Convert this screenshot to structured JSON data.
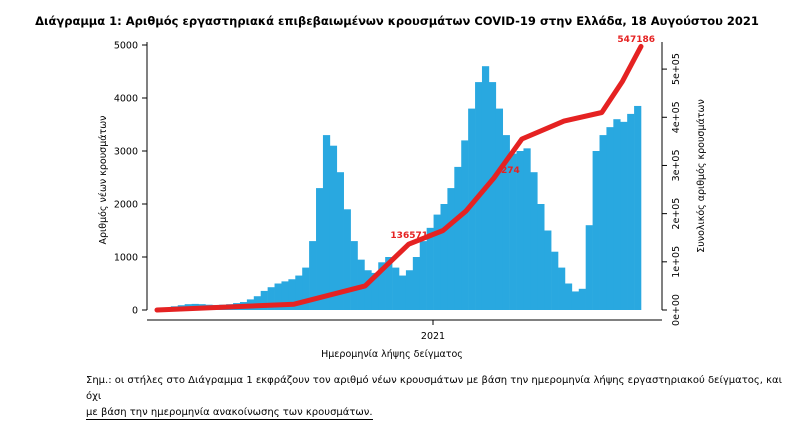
{
  "chart_data": {
    "type": "bar",
    "title": "Διάγραμμα 1: Αριθμός εργαστηριακά επιβεβαιωμένων κρουσμάτων COVID-19 στην Ελλάδα, 18 Αυγούστου 2021",
    "xlabel": "Ημερομηνία λήψης δείγματος",
    "ylabel": "Αριθμός νέων κρουσμάτων",
    "y2label": "Συνολικός αριθμός κρουσμάτων",
    "x_tick_labels": [
      "2021"
    ],
    "y_ticks": [
      "0",
      "1000",
      "2000",
      "3000",
      "4000",
      "5000"
    ],
    "y2_ticks": [
      "0e+00",
      "1e+05",
      "2e+05",
      "3e+05",
      "4e+05",
      "5e+05"
    ],
    "ylim": [
      0,
      5000
    ],
    "y2lim": [
      0,
      550000
    ],
    "colors": {
      "bars": "#29a8e0",
      "line": "#e52222",
      "labels": "#e52222"
    },
    "series": [
      {
        "type": "bar",
        "axis": "left",
        "weekly_values": [
          15,
          40,
          70,
          90,
          110,
          115,
          110,
          100,
          95,
          100,
          110,
          130,
          150,
          200,
          260,
          360,
          430,
          500,
          540,
          580,
          650,
          800,
          1300,
          2300,
          3300,
          3100,
          2600,
          1900,
          1300,
          950,
          750,
          700,
          900,
          1000,
          800,
          650,
          750,
          1000,
          1300,
          1550,
          1800,
          2000,
          2300,
          2700,
          3200,
          3800,
          4300,
          4600,
          4300,
          3800,
          3300,
          2950,
          3000,
          3050,
          2600,
          2000,
          1500,
          1100,
          800,
          500,
          350,
          400,
          1600,
          3000,
          3300,
          3450,
          3600,
          3550,
          3700,
          3850
        ]
      },
      {
        "type": "line",
        "axis": "right",
        "x_fraction": [
          0,
          0.283,
          0.43,
          0.52,
          0.591,
          0.638,
          0.696,
          0.754,
          0.841,
          0.919,
          0.962,
          1
        ],
        "values": [
          0,
          12000,
          50000,
          136571,
          165000,
          205000,
          274000,
          355000,
          392000,
          410000,
          475000,
          547186
        ]
      }
    ],
    "annotations": [
      "136571",
      "274"
    ],
    "last_value_label": "547186"
  },
  "footnote": {
    "line1": "Σημ.: οι στήλες στο Διάγραμμα 1 εκφράζουν τον αριθμό νέων κρουσμάτων με βάση την ημερομηνία λήψης εργαστηριακού δείγματος, και όχι",
    "line2": "με βάση την ημερομηνία ανακοίνωσης των κρουσμάτων."
  }
}
